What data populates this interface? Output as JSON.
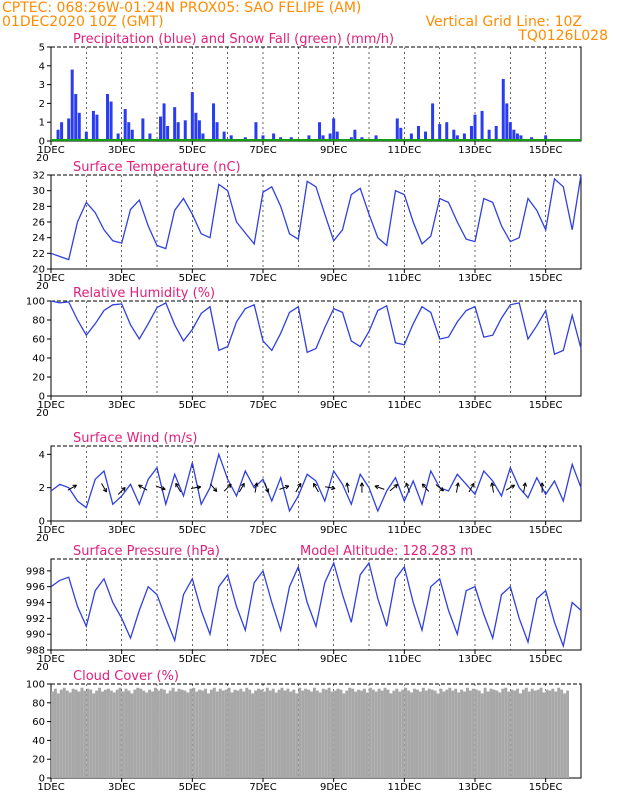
{
  "header": {
    "line1_left": "CPTEC:   068:26W-01:24N  PROX05: SAO FELIPE (AM)",
    "line2_left": "01DEC2020 10Z (GMT)",
    "line2_right": "Vertical Grid Line: 10Z",
    "line3_right": "TQ0126L028"
  },
  "colors": {
    "header": "#ff8c00",
    "title": "#e0207a",
    "line": "#3040e0",
    "precip": "#2a3cf0",
    "snow": "#10a010",
    "cloud": "#a8a8a8"
  },
  "x_axis": {
    "days": 15,
    "labels": [
      "1DEC",
      "3DEC",
      "5DEC",
      "7DEC",
      "9DEC",
      "11DEC",
      "13DEC",
      "15DEC"
    ],
    "label_days": [
      0,
      2,
      4,
      6,
      8,
      10,
      12,
      14
    ],
    "year_stub": "20"
  },
  "chart_data": [
    {
      "type": "bar",
      "title": "Precipitation (blue) and Snow Fall (green) (mm/h)",
      "ylim": [
        0,
        5
      ],
      "yticks": [
        0,
        1,
        2,
        3,
        4,
        5
      ],
      "series": [
        {
          "name": "Precipitation",
          "values": [
            [
              0.2,
              0.6
            ],
            [
              0.3,
              1.0
            ],
            [
              0.5,
              1.2
            ],
            [
              0.6,
              3.8
            ],
            [
              0.7,
              2.5
            ],
            [
              0.8,
              1.5
            ],
            [
              1.0,
              0.5
            ],
            [
              1.2,
              1.6
            ],
            [
              1.3,
              1.4
            ],
            [
              1.6,
              2.5
            ],
            [
              1.7,
              2.1
            ],
            [
              1.9,
              0.4
            ],
            [
              2.1,
              1.7
            ],
            [
              2.2,
              1.0
            ],
            [
              2.3,
              0.6
            ],
            [
              2.6,
              1.2
            ],
            [
              2.8,
              0.4
            ],
            [
              3.1,
              1.3
            ],
            [
              3.2,
              2.0
            ],
            [
              3.3,
              0.8
            ],
            [
              3.5,
              1.8
            ],
            [
              3.6,
              1.0
            ],
            [
              3.8,
              1.1
            ],
            [
              4.0,
              2.6
            ],
            [
              4.1,
              1.5
            ],
            [
              4.2,
              1.1
            ],
            [
              4.3,
              0.4
            ],
            [
              4.6,
              2.0
            ],
            [
              4.7,
              1.0
            ],
            [
              4.9,
              0.5
            ],
            [
              5.1,
              0.3
            ],
            [
              5.5,
              0.2
            ],
            [
              5.8,
              1.0
            ],
            [
              6.0,
              0.3
            ],
            [
              6.3,
              0.4
            ],
            [
              6.5,
              0.2
            ],
            [
              6.8,
              0.2
            ],
            [
              7.3,
              0.3
            ],
            [
              7.6,
              1.0
            ],
            [
              7.7,
              0.3
            ],
            [
              7.9,
              0.4
            ],
            [
              8.0,
              1.2
            ],
            [
              8.1,
              0.5
            ],
            [
              8.5,
              0.2
            ],
            [
              8.6,
              0.6
            ],
            [
              8.8,
              0.2
            ],
            [
              9.2,
              0.3
            ],
            [
              9.8,
              1.2
            ],
            [
              9.9,
              0.7
            ],
            [
              10.2,
              0.4
            ],
            [
              10.4,
              0.8
            ],
            [
              10.6,
              0.5
            ],
            [
              10.8,
              2.0
            ],
            [
              11.0,
              0.9
            ],
            [
              11.2,
              1.0
            ],
            [
              11.4,
              0.6
            ],
            [
              11.5,
              0.3
            ],
            [
              11.7,
              0.4
            ],
            [
              11.9,
              0.8
            ],
            [
              12.0,
              1.4
            ],
            [
              12.2,
              1.6
            ],
            [
              12.4,
              0.6
            ],
            [
              12.6,
              0.8
            ],
            [
              12.8,
              3.3
            ],
            [
              12.9,
              2.0
            ],
            [
              13.0,
              1.0
            ],
            [
              13.1,
              0.6
            ],
            [
              13.2,
              0.4
            ],
            [
              13.3,
              0.3
            ],
            [
              13.6,
              0.2
            ],
            [
              14.0,
              0.3
            ],
            [
              14.3,
              0.1
            ],
            [
              14.8,
              0.1
            ]
          ]
        },
        {
          "name": "Snow Fall",
          "values": []
        }
      ]
    },
    {
      "type": "line",
      "title": "Surface Temperature (nC)",
      "ylim": [
        20,
        32
      ],
      "yticks": [
        20,
        22,
        24,
        26,
        28,
        30,
        32
      ],
      "x": [
        0.0,
        0.25,
        0.5,
        0.75,
        1.0,
        1.25,
        1.5,
        1.75,
        2.0,
        2.25,
        2.5,
        2.75,
        3.0,
        3.25,
        3.5,
        3.75,
        4.0,
        4.25,
        4.5,
        4.75,
        5.0,
        5.25,
        5.5,
        5.75,
        6.0,
        6.25,
        6.5,
        6.75,
        7.0,
        7.25,
        7.5,
        7.75,
        8.0,
        8.25,
        8.5,
        8.75,
        9.0,
        9.25,
        9.5,
        9.75,
        10.0,
        10.25,
        10.5,
        10.75,
        11.0,
        11.25,
        11.5,
        11.75,
        12.0,
        12.25,
        12.5,
        12.75,
        13.0,
        13.25,
        13.5,
        13.75,
        14.0,
        14.25,
        14.5,
        14.75,
        15.0
      ],
      "values": [
        22.0,
        21.6,
        21.2,
        26.0,
        28.5,
        27.2,
        25.0,
        23.6,
        23.3,
        27.6,
        28.8,
        25.5,
        23.0,
        22.6,
        27.5,
        29.0,
        27.0,
        24.5,
        24.0,
        30.8,
        30.0,
        26.0,
        24.6,
        23.2,
        29.8,
        30.5,
        28.0,
        24.5,
        23.8,
        31.2,
        30.5,
        27.0,
        23.6,
        25.0,
        29.5,
        30.3,
        27.0,
        24.0,
        23.0,
        30.0,
        29.5,
        26.0,
        23.2,
        24.2,
        29.0,
        28.5,
        26.0,
        23.8,
        23.5,
        29.0,
        28.5,
        25.5,
        23.5,
        24.0,
        29.0,
        27.5,
        25.0,
        31.5,
        30.5,
        25.0,
        32.0
      ]
    },
    {
      "type": "line",
      "title": "Relative Humidity (%)",
      "ylim": [
        0,
        100
      ],
      "yticks": [
        0,
        20,
        40,
        60,
        80,
        100
      ],
      "x": [
        0.0,
        0.25,
        0.5,
        0.75,
        1.0,
        1.25,
        1.5,
        1.75,
        2.0,
        2.25,
        2.5,
        2.75,
        3.0,
        3.25,
        3.5,
        3.75,
        4.0,
        4.25,
        4.5,
        4.75,
        5.0,
        5.25,
        5.5,
        5.75,
        6.0,
        6.25,
        6.5,
        6.75,
        7.0,
        7.25,
        7.5,
        7.75,
        8.0,
        8.25,
        8.5,
        8.75,
        9.0,
        9.25,
        9.5,
        9.75,
        10.0,
        10.25,
        10.5,
        10.75,
        11.0,
        11.25,
        11.5,
        11.75,
        12.0,
        12.25,
        12.5,
        12.75,
        13.0,
        13.25,
        13.5,
        13.75,
        14.0,
        14.25,
        14.5,
        14.75,
        15.0
      ],
      "values": [
        100,
        98,
        99,
        80,
        64,
        76,
        90,
        96,
        97,
        75,
        60,
        76,
        93,
        98,
        75,
        58,
        70,
        87,
        94,
        48,
        52,
        78,
        92,
        96,
        58,
        48,
        66,
        88,
        94,
        46,
        50,
        72,
        92,
        88,
        58,
        52,
        68,
        90,
        95,
        56,
        54,
        76,
        94,
        88,
        60,
        62,
        78,
        90,
        94,
        62,
        64,
        82,
        96,
        98,
        60,
        74,
        90,
        44,
        48,
        85,
        50
      ]
    },
    {
      "type": "line",
      "title": "Surface Wind (m/s)",
      "ylim": [
        0,
        4.5
      ],
      "yticks": [
        0,
        2,
        4
      ],
      "x": [
        0.0,
        0.25,
        0.5,
        0.75,
        1.0,
        1.25,
        1.5,
        1.75,
        2.0,
        2.25,
        2.5,
        2.75,
        3.0,
        3.25,
        3.5,
        3.75,
        4.0,
        4.25,
        4.5,
        4.75,
        5.0,
        5.25,
        5.5,
        5.75,
        6.0,
        6.25,
        6.5,
        6.75,
        7.0,
        7.25,
        7.5,
        7.75,
        8.0,
        8.25,
        8.5,
        8.75,
        9.0,
        9.25,
        9.5,
        9.75,
        10.0,
        10.25,
        10.5,
        10.75,
        11.0,
        11.25,
        11.5,
        11.75,
        12.0,
        12.25,
        12.5,
        12.75,
        13.0,
        13.25,
        13.5,
        13.75,
        14.0,
        14.25,
        14.5,
        14.75,
        15.0
      ],
      "values": [
        1.8,
        2.2,
        2.0,
        1.2,
        0.8,
        2.5,
        3.0,
        1.0,
        1.5,
        2.2,
        1.0,
        2.5,
        3.2,
        1.0,
        2.8,
        1.5,
        3.5,
        1.0,
        2.0,
        4.0,
        2.5,
        1.5,
        3.0,
        2.0,
        2.5,
        1.2,
        2.6,
        0.6,
        1.5,
        2.8,
        2.4,
        1.2,
        3.0,
        2.2,
        1.0,
        2.8,
        2.0,
        0.6,
        1.8,
        2.6,
        1.2,
        2.4,
        1.0,
        3.0,
        2.0,
        1.8,
        2.8,
        2.2,
        1.6,
        3.0,
        2.4,
        1.5,
        3.2,
        2.0,
        1.4,
        2.6,
        1.6,
        2.4,
        1.2,
        3.4,
        2.0
      ],
      "vectors": [
        [
          0.6,
          2,
          30
        ],
        [
          1.5,
          2,
          -60
        ],
        [
          2.0,
          1.8,
          45
        ],
        [
          2.6,
          2,
          150
        ],
        [
          3.1,
          2,
          -20
        ],
        [
          3.6,
          2,
          120
        ],
        [
          4.1,
          2,
          10
        ],
        [
          4.6,
          2,
          -50
        ],
        [
          5.0,
          2,
          45
        ],
        [
          5.4,
          2,
          60
        ],
        [
          5.8,
          2,
          80
        ],
        [
          6.1,
          2,
          -70
        ],
        [
          6.6,
          2,
          20
        ],
        [
          7.0,
          2,
          60
        ],
        [
          7.5,
          2,
          120
        ],
        [
          7.9,
          2,
          -10
        ],
        [
          8.4,
          2,
          100
        ],
        [
          8.8,
          2,
          90
        ],
        [
          9.3,
          2,
          160
        ],
        [
          9.7,
          2,
          40
        ],
        [
          10.1,
          2,
          110
        ],
        [
          10.6,
          2,
          130
        ],
        [
          11.0,
          2,
          -40
        ],
        [
          11.5,
          2,
          80
        ],
        [
          11.9,
          2,
          60
        ],
        [
          12.5,
          2,
          100
        ],
        [
          13.0,
          2,
          30
        ],
        [
          13.4,
          2,
          80
        ],
        [
          13.9,
          2,
          90
        ]
      ]
    },
    {
      "type": "line",
      "title": "Surface Pressure (hPa)",
      "subtitle": "Model Altitude: 128.283 m",
      "ylim": [
        988,
        999.5
      ],
      "yticks": [
        988,
        990,
        992,
        994,
        996,
        998
      ],
      "x": [
        0.0,
        0.25,
        0.5,
        0.75,
        1.0,
        1.25,
        1.5,
        1.75,
        2.0,
        2.25,
        2.5,
        2.75,
        3.0,
        3.25,
        3.5,
        3.75,
        4.0,
        4.25,
        4.5,
        4.75,
        5.0,
        5.25,
        5.5,
        5.75,
        6.0,
        6.25,
        6.5,
        6.75,
        7.0,
        7.25,
        7.5,
        7.75,
        8.0,
        8.25,
        8.5,
        8.75,
        9.0,
        9.25,
        9.5,
        9.75,
        10.0,
        10.25,
        10.5,
        10.75,
        11.0,
        11.25,
        11.5,
        11.75,
        12.0,
        12.25,
        12.5,
        12.75,
        13.0,
        13.25,
        13.5,
        13.75,
        14.0,
        14.25,
        14.5,
        14.75,
        15.0
      ],
      "values": [
        996.0,
        996.8,
        997.2,
        993.5,
        991.0,
        995.5,
        997.0,
        994.0,
        992.0,
        989.5,
        993.0,
        996.0,
        995.0,
        992.0,
        989.2,
        995.0,
        997.0,
        993.0,
        990.0,
        996.0,
        997.5,
        993.5,
        990.5,
        996.5,
        998.0,
        994.0,
        990.5,
        996.0,
        998.5,
        994.0,
        991.0,
        996.5,
        999.0,
        995.0,
        991.5,
        997.5,
        999.0,
        994.5,
        991.0,
        997.0,
        998.5,
        994.0,
        990.5,
        996.0,
        997.0,
        993.0,
        990.0,
        995.5,
        996.0,
        992.5,
        989.5,
        995.0,
        996.0,
        992.0,
        989.0,
        994.5,
        995.5,
        991.5,
        988.5,
        994.0,
        993.0
      ]
    },
    {
      "type": "bar",
      "title": "Cloud Cover (%)",
      "ylim": [
        0,
        100
      ],
      "yticks": [
        0,
        20,
        40,
        60,
        80,
        100
      ],
      "x_start": 0.0,
      "x_step": 0.0833,
      "values": [
        92,
        95,
        90,
        94,
        96,
        93,
        91,
        95,
        94,
        92,
        96,
        93,
        95,
        94,
        90,
        93,
        96,
        92,
        94,
        95,
        93,
        91,
        94,
        96,
        92,
        95,
        93,
        90,
        94,
        96,
        95,
        93,
        91,
        94,
        92,
        96,
        93,
        95,
        94,
        90,
        93,
        96,
        92,
        95,
        94,
        93,
        91,
        95,
        96,
        92,
        94,
        93,
        95,
        90,
        94,
        96,
        92,
        95,
        93,
        94,
        96,
        91,
        94,
        93,
        95,
        92,
        96,
        94,
        90,
        93,
        95,
        94,
        92,
        96,
        93,
        95,
        91,
        94,
        96,
        93,
        95,
        92,
        94,
        90,
        96,
        93,
        95,
        94,
        92,
        96,
        93,
        91,
        95,
        94,
        96,
        92,
        93,
        95,
        94,
        90,
        93,
        96,
        95,
        92,
        94,
        93,
        95,
        91,
        96,
        94,
        92,
        95,
        93,
        96,
        94,
        90,
        93,
        95,
        92,
        94,
        96,
        93,
        91,
        95,
        94,
        92,
        96,
        93,
        95,
        94,
        93,
        90,
        95,
        92,
        94,
        96,
        93,
        95,
        91,
        94,
        92,
        96,
        93,
        95,
        94,
        93,
        90,
        96,
        92,
        95,
        94,
        93,
        91,
        95,
        96,
        92,
        94,
        93,
        95,
        90,
        94,
        96,
        92,
        95,
        93,
        94,
        96,
        91,
        94,
        93,
        95,
        92,
        96,
        94,
        90,
        93
      ]
    }
  ]
}
